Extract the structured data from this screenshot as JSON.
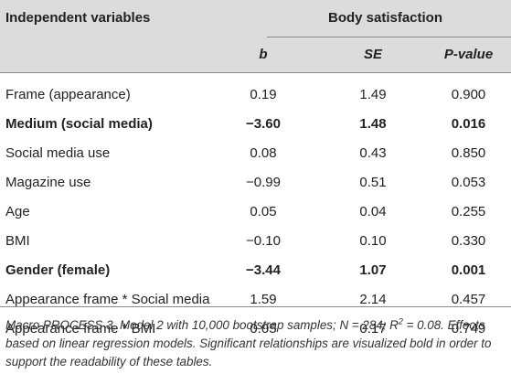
{
  "table": {
    "header_left": "Independent variables",
    "header_group": "Body satisfaction",
    "columns": [
      "b",
      "SE",
      "P-value"
    ],
    "rows": [
      {
        "label": "Frame (appearance)",
        "b": "0.19",
        "se": "1.49",
        "p": "0.900",
        "bold": false
      },
      {
        "label": "Medium (social media)",
        "b": "−3.60",
        "se": "1.48",
        "p": "0.016",
        "bold": true
      },
      {
        "label": "Social media use",
        "b": "0.08",
        "se": "0.43",
        "p": "0.850",
        "bold": false
      },
      {
        "label": "Magazine use",
        "b": "−0.99",
        "se": "0.51",
        "p": "0.053",
        "bold": false
      },
      {
        "label": "Age",
        "b": "0.05",
        "se": "0.04",
        "p": "0.255",
        "bold": false
      },
      {
        "label": "BMI",
        "b": "−0.10",
        "se": "0.10",
        "p": "0.330",
        "bold": false
      },
      {
        "label": "Gender (female)",
        "b": "−3.44",
        "se": "1.07",
        "p": "0.001",
        "bold": true
      },
      {
        "label": "Appearance frame * Social media",
        "b": "1.59",
        "se": "2.14",
        "p": "0.457",
        "bold": false
      },
      {
        "label": "Appearance frame * BMI",
        "b": "0.05",
        "se": "0.17",
        "p": "0.749",
        "bold": false
      }
    ]
  },
  "note": {
    "part1": "Macro PROCESS 3, Model 2 with 10,000 bootstrap samples; N = 284; R",
    "sup": "2",
    "part2": " = 0.08. Effects based on linear regression models. Significant relationships are visualized bold in order to support the readability of these tables."
  }
}
